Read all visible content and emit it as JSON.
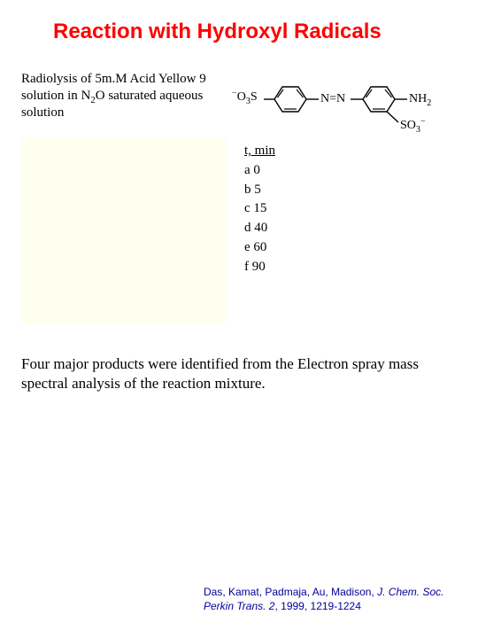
{
  "title": "Reaction with Hydroxyl Radicals",
  "description_html": "Radiolysis of 5m.M Acid Yellow 9 solution in N<span class=\"sub\">2</span>O saturated aqueous solution",
  "structure": {
    "left_group_html": "<span class=\"sup\">−</span>O<span class=\"sub\">3</span>S",
    "azo": "N=N",
    "right_group_html": "NH<span class=\"sub\">2</span>",
    "bottom_group_html": "SO<span class=\"sub\">3</span><span class=\"sup\">−</span>",
    "ring_stroke": "#000000",
    "ring_stroke_width": 1.4,
    "bond_stroke": "#000000"
  },
  "timepoints": {
    "header": "t, min",
    "rows": [
      {
        "label": "a",
        "value": "0"
      },
      {
        "label": "b",
        "value": "5"
      },
      {
        "label": "c",
        "value": "15"
      },
      {
        "label": "d",
        "value": "40"
      },
      {
        "label": "e",
        "value": "60"
      },
      {
        "label": "f",
        "value": "90"
      }
    ]
  },
  "spectrum_box_bg": "#ffffef",
  "body_text": "Four major products were identified from the Electron spray mass spectral analysis of the reaction mixture.",
  "citation": {
    "authors": "Das, Kamat, Padmaja, Au, Madison, ",
    "journal": "J. Chem. Soc. Perkin Trans. 2",
    "rest": ", 1999, 1219-1224"
  }
}
